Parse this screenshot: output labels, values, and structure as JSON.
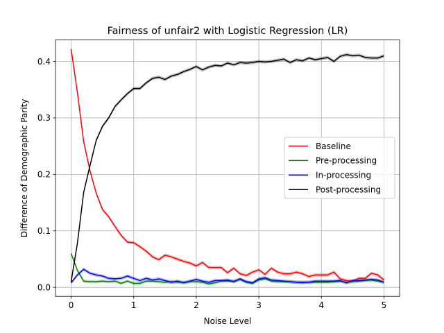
{
  "chart_data": {
    "type": "line",
    "title": "Fairness of unfair2 with Logistic Regression (LR)",
    "xlabel": "Noise Level",
    "ylabel": "Difference of Demographic Parity",
    "xlim": [
      -0.25,
      5.25
    ],
    "ylim": [
      -0.016,
      0.438
    ],
    "xticks": [
      0,
      1,
      2,
      3,
      4,
      5
    ],
    "xtick_labels": [
      "0",
      "1",
      "2",
      "3",
      "4",
      "5"
    ],
    "yticks": [
      0.0,
      0.1,
      0.2,
      0.3,
      0.4
    ],
    "ytick_labels": [
      "0.0",
      "0.1",
      "0.2",
      "0.3",
      "0.4"
    ],
    "grid": true,
    "legend_position": "center-right",
    "x": [
      0.0,
      0.1,
      0.2,
      0.3,
      0.4,
      0.5,
      0.6,
      0.7,
      0.8,
      0.9,
      1.0,
      1.1,
      1.2,
      1.3,
      1.4,
      1.5,
      1.6,
      1.7,
      1.8,
      1.9,
      2.0,
      2.1,
      2.2,
      2.3,
      2.4,
      2.5,
      2.6,
      2.7,
      2.8,
      2.9,
      3.0,
      3.1,
      3.2,
      3.3,
      3.4,
      3.5,
      3.6,
      3.7,
      3.8,
      3.9,
      4.0,
      4.1,
      4.2,
      4.3,
      4.4,
      4.5,
      4.6,
      4.7,
      4.8,
      4.9,
      5.0
    ],
    "series": [
      {
        "name": "Baseline",
        "color": "#ff0000",
        "values": [
          0.422,
          0.345,
          0.258,
          0.207,
          0.167,
          0.138,
          0.125,
          0.108,
          0.092,
          0.08,
          0.079,
          0.072,
          0.064,
          0.054,
          0.049,
          0.057,
          0.054,
          0.05,
          0.046,
          0.043,
          0.038,
          0.044,
          0.035,
          0.035,
          0.035,
          0.026,
          0.034,
          0.024,
          0.021,
          0.027,
          0.031,
          0.023,
          0.034,
          0.027,
          0.024,
          0.024,
          0.027,
          0.024,
          0.019,
          0.022,
          0.022,
          0.022,
          0.027,
          0.015,
          0.012,
          0.011,
          0.016,
          0.016,
          0.025,
          0.022,
          0.013
        ]
      },
      {
        "name": "Pre-processing",
        "color": "#008000",
        "values": [
          0.06,
          0.03,
          0.011,
          0.01,
          0.01,
          0.011,
          0.01,
          0.011,
          0.007,
          0.011,
          0.007,
          0.007,
          0.011,
          0.011,
          0.01,
          0.009,
          0.01,
          0.009,
          0.009,
          0.01,
          0.01,
          0.009,
          0.006,
          0.008,
          0.011,
          0.011,
          0.011,
          0.014,
          0.009,
          0.007,
          0.013,
          0.015,
          0.011,
          0.01,
          0.01,
          0.01,
          0.009,
          0.008,
          0.009,
          0.009,
          0.009,
          0.009,
          0.01,
          0.011,
          0.009,
          0.01,
          0.011,
          0.012,
          0.013,
          0.011,
          0.009
        ]
      },
      {
        "name": "In-processing",
        "color": "#0000ff",
        "values": [
          0.008,
          0.022,
          0.032,
          0.025,
          0.022,
          0.02,
          0.016,
          0.015,
          0.016,
          0.02,
          0.016,
          0.012,
          0.016,
          0.013,
          0.015,
          0.012,
          0.009,
          0.011,
          0.008,
          0.011,
          0.014,
          0.011,
          0.009,
          0.012,
          0.012,
          0.013,
          0.01,
          0.015,
          0.01,
          0.008,
          0.015,
          0.017,
          0.013,
          0.012,
          0.011,
          0.01,
          0.009,
          0.009,
          0.009,
          0.011,
          0.011,
          0.011,
          0.011,
          0.012,
          0.008,
          0.012,
          0.012,
          0.013,
          0.014,
          0.013,
          0.009
        ]
      },
      {
        "name": "Post-processing",
        "color": "#000000",
        "values": [
          0.01,
          0.078,
          0.168,
          0.215,
          0.26,
          0.285,
          0.3,
          0.32,
          0.332,
          0.343,
          0.352,
          0.352,
          0.362,
          0.37,
          0.372,
          0.368,
          0.374,
          0.377,
          0.382,
          0.386,
          0.391,
          0.385,
          0.39,
          0.393,
          0.392,
          0.397,
          0.394,
          0.398,
          0.397,
          0.398,
          0.4,
          0.399,
          0.4,
          0.402,
          0.404,
          0.398,
          0.403,
          0.401,
          0.406,
          0.403,
          0.405,
          0.407,
          0.4,
          0.409,
          0.412,
          0.41,
          0.411,
          0.407,
          0.406,
          0.406,
          0.41
        ]
      }
    ]
  }
}
